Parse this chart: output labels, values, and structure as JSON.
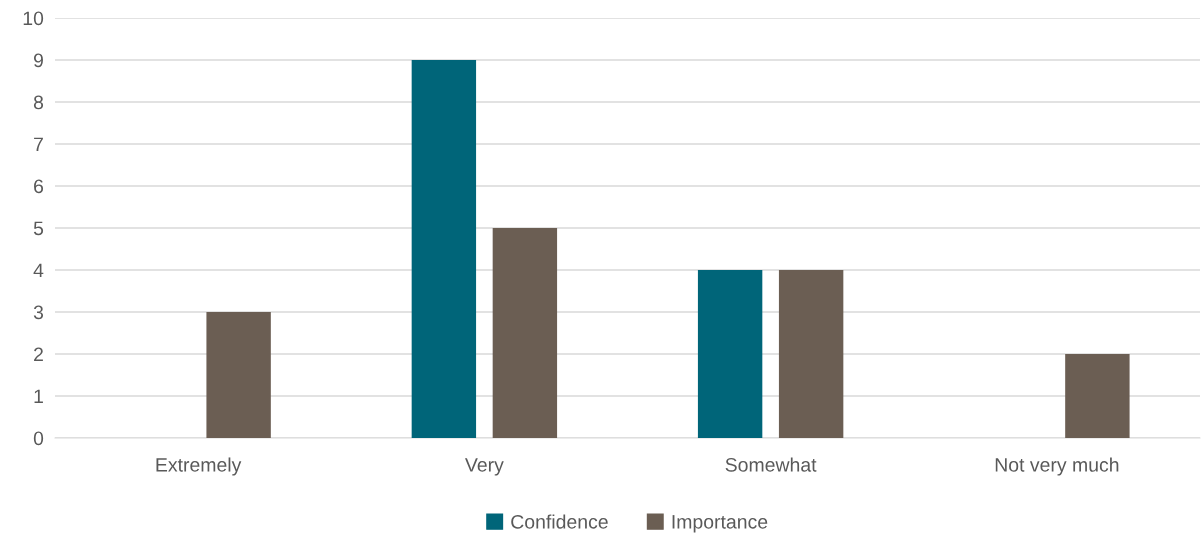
{
  "chart_data": {
    "type": "bar",
    "categories": [
      "Extremely",
      "Very",
      "Somewhat",
      "Not very much"
    ],
    "series": [
      {
        "name": "Confidence",
        "color": "#006579",
        "values": [
          0,
          9,
          4,
          0
        ]
      },
      {
        "name": "Importance",
        "color": "#6b5e53",
        "values": [
          3,
          5,
          4,
          2
        ]
      }
    ],
    "ylim": [
      0,
      10
    ],
    "yticks": [
      0,
      1,
      2,
      3,
      4,
      5,
      6,
      7,
      8,
      9,
      10
    ],
    "grid": "y",
    "legend": "bottom"
  }
}
